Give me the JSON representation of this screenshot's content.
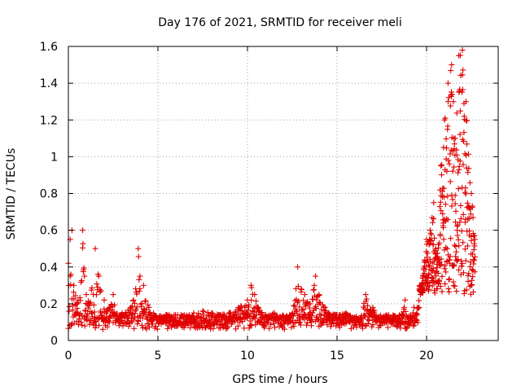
{
  "chart_data": {
    "type": "scatter",
    "title": "Day 176 of 2021, SRMTID for receiver meli",
    "xlabel": "GPS time / hours",
    "ylabel": "SRMTID / TECUs",
    "xlim": [
      0,
      24
    ],
    "ylim": [
      0,
      1.6
    ],
    "xticks": [
      0,
      5,
      10,
      15,
      20
    ],
    "yticks": [
      0,
      0.2,
      0.4,
      0.6,
      0.8,
      1.0,
      1.2,
      1.4,
      1.6
    ],
    "xtick_labels": [
      "0",
      "5",
      "10",
      "15",
      "20"
    ],
    "ytick_labels": [
      "0",
      "0.2",
      "0.4",
      "0.6",
      "0.8",
      "1",
      "1.2",
      "1.4",
      "1.6"
    ],
    "grid": true,
    "marker": "plus",
    "marker_color": "#e00000",
    "series": [
      {
        "name": "SRMTID",
        "envelope_description": "approximate baseline/upper envelope of dense samples (hour, TECU)",
        "x": [
          0.0,
          0.1,
          0.2,
          0.3,
          0.5,
          0.8,
          0.9,
          1.0,
          1.2,
          1.5,
          1.7,
          2.0,
          2.3,
          2.5,
          2.8,
          3.0,
          3.5,
          3.9,
          4.0,
          4.2,
          4.5,
          5.0,
          5.5,
          6.0,
          6.5,
          7.0,
          7.5,
          8.0,
          8.5,
          9.0,
          9.5,
          10.0,
          10.2,
          10.4,
          10.6,
          11.0,
          11.5,
          12.0,
          12.5,
          12.8,
          13.0,
          13.2,
          13.5,
          13.8,
          14.0,
          14.5,
          15.0,
          15.5,
          16.0,
          16.3,
          16.6,
          17.0,
          17.5,
          18.0,
          18.5,
          18.8,
          19.0,
          19.3,
          19.6,
          19.8,
          20.0,
          20.2,
          20.4,
          20.6,
          20.8,
          21.0,
          21.2,
          21.4,
          21.6,
          21.8,
          22.0,
          22.2,
          22.5,
          22.7
        ],
        "values": [
          0.42,
          0.55,
          0.6,
          0.3,
          0.2,
          0.6,
          0.35,
          0.25,
          0.2,
          0.5,
          0.35,
          0.22,
          0.18,
          0.25,
          0.12,
          0.15,
          0.18,
          0.5,
          0.35,
          0.3,
          0.18,
          0.12,
          0.14,
          0.1,
          0.1,
          0.15,
          0.16,
          0.15,
          0.14,
          0.15,
          0.18,
          0.22,
          0.3,
          0.25,
          0.18,
          0.14,
          0.15,
          0.12,
          0.15,
          0.4,
          0.28,
          0.25,
          0.2,
          0.35,
          0.25,
          0.15,
          0.14,
          0.15,
          0.1,
          0.12,
          0.25,
          0.18,
          0.12,
          0.12,
          0.1,
          0.22,
          0.1,
          0.18,
          0.28,
          0.35,
          0.55,
          0.6,
          0.75,
          0.45,
          0.95,
          1.2,
          1.4,
          1.5,
          1.1,
          1.55,
          1.58,
          1.3,
          0.8,
          0.55
        ]
      }
    ]
  }
}
